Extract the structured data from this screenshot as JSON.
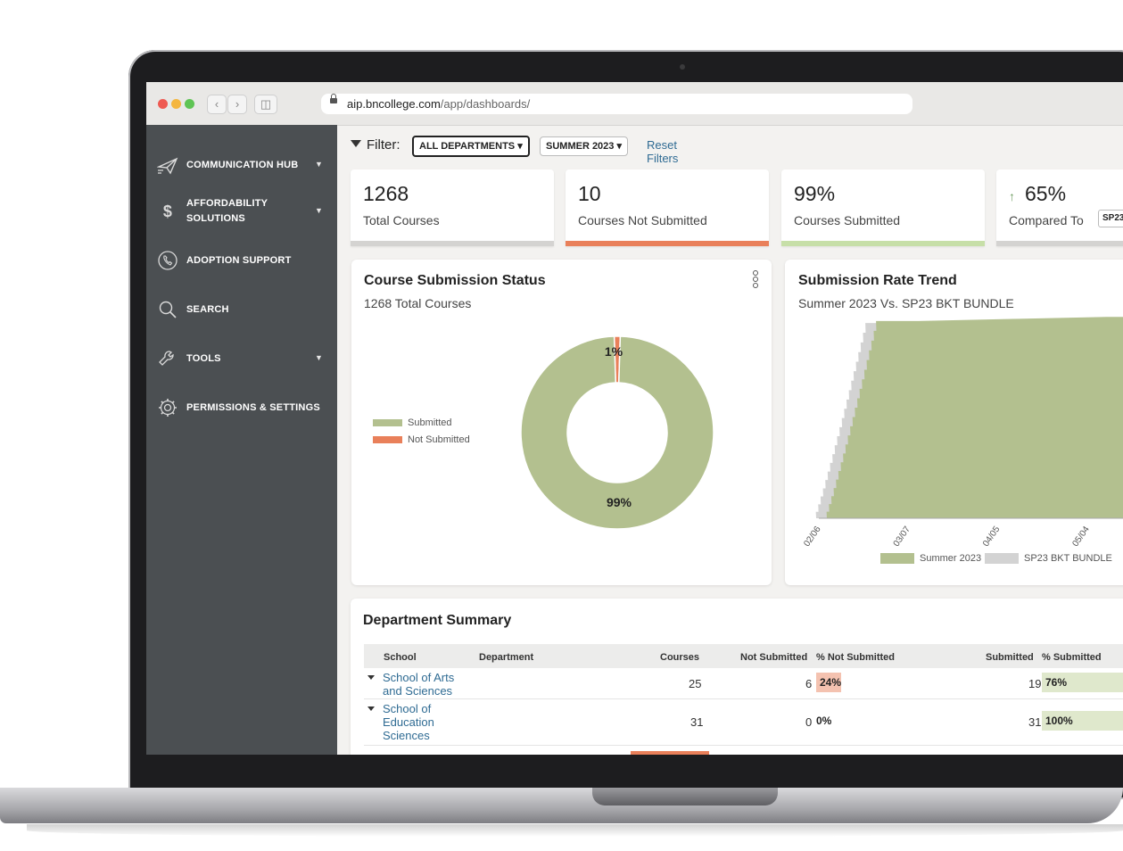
{
  "browser": {
    "url_host": "aip.bncollege.com",
    "url_path": "/app/dashboards/",
    "back_icon": "chevron-left-icon",
    "forward_icon": "chevron-right-icon",
    "sidebar_toggle_icon": "sidebar-icon"
  },
  "sidebar": {
    "items": [
      {
        "label": "COMMUNICATION HUB",
        "icon": "paper-plane-icon",
        "has_caret": true
      },
      {
        "label": "AFFORDABILITY SOLUTIONS",
        "icon": "dollar-icon",
        "has_caret": true
      },
      {
        "label": "ADOPTION SUPPORT",
        "icon": "phone-icon",
        "has_caret": false
      },
      {
        "label": "SEARCH",
        "icon": "search-icon",
        "has_caret": false
      },
      {
        "label": "TOOLS",
        "icon": "wrench-icon",
        "has_caret": true
      },
      {
        "label": "PERMISSIONS & SETTINGS",
        "icon": "gear-icon",
        "has_caret": false
      }
    ]
  },
  "filter": {
    "label": "Filter:",
    "department": "ALL DEPARTMENTS",
    "term": "SUMMER 2023",
    "reset": "Reset Filters"
  },
  "kpis": [
    {
      "value": "1268",
      "label": "Total Courses",
      "bar_color": "#d4d3d1"
    },
    {
      "value": "10",
      "label": "Courses Not Submitted",
      "bar_color": "#e9805a"
    },
    {
      "value": "99%",
      "label": "Courses Submitted",
      "bar_color": "#c7dfa8"
    },
    {
      "value": "65%",
      "label": "Compared To",
      "compare_value": "SP23",
      "bar_color": "#d4d3d1"
    }
  ],
  "status_panel": {
    "title": "Course Submission Status",
    "subtitle": "1268 Total Courses",
    "menu_icon": "more-vertical-icon"
  },
  "trend_panel": {
    "title": "Submission Rate Trend",
    "subtitle": "Summer 2023 Vs. SP23 BKT BUNDLE"
  },
  "chart_data": [
    {
      "type": "pie",
      "categories": [
        "Submitted",
        "Not Submitted"
      ],
      "values": [
        99,
        1
      ],
      "labels": [
        "99%",
        "1%"
      ],
      "colors": [
        "#b3c08f",
        "#e9805a"
      ],
      "legend": "left"
    },
    {
      "type": "area",
      "x": [
        "02/06",
        "03/07",
        "04/05",
        "05/04"
      ],
      "series": [
        {
          "name": "Summer 2023",
          "color": "#b3c08f",
          "values": [
            0,
            97,
            98,
            99
          ]
        },
        {
          "name": "SP23 BKT BUNDLE",
          "color": "#d3d3d3",
          "values": [
            0,
            96,
            97,
            98
          ]
        }
      ],
      "legend": "bottom"
    }
  ],
  "summary": {
    "title": "Department Summary",
    "headers": {
      "school": "School",
      "department": "Department",
      "courses": "Courses",
      "not_submitted": "Not Submitted",
      "pct_not_submitted": "% Not Submitted",
      "submitted": "Submitted",
      "pct_submitted": "% Submitted"
    },
    "rows": [
      {
        "school": "School of Arts and Sciences",
        "courses": "25",
        "not_submitted": "6",
        "pct_not_submitted": "24%",
        "pct_not_value": 24,
        "submitted": "19",
        "pct_submitted": "76%",
        "pct_sub_value": 76
      },
      {
        "school": "School of Education Sciences",
        "courses": "31",
        "not_submitted": "0",
        "pct_not_submitted": "0%",
        "pct_not_value": 0,
        "submitted": "31",
        "pct_submitted": "100%",
        "pct_sub_value": 100
      }
    ]
  }
}
